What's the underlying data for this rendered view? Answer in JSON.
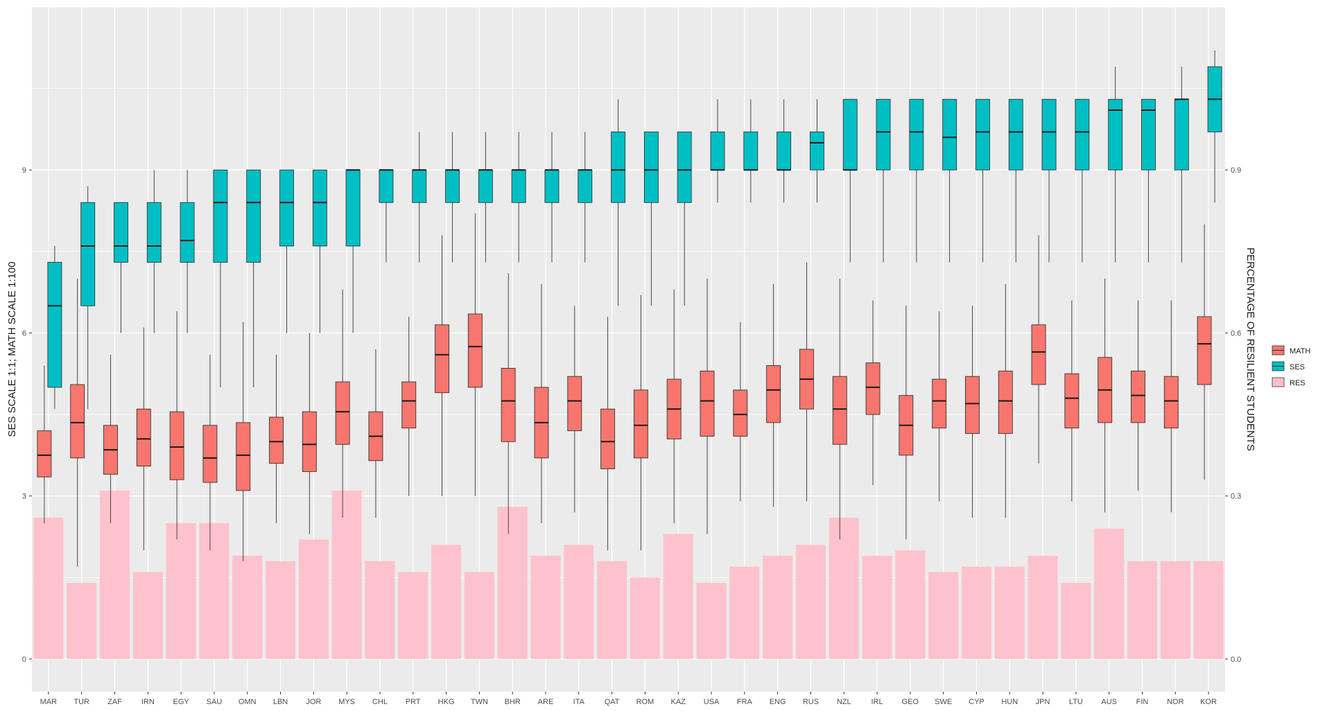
{
  "chart_data": {
    "type": "boxplot",
    "ylabel_left": "SES SCALE 1:1; MATH SCALE 1:100",
    "ylabel_right": "PERCENTAGE OF RESILIENT STUDENTS",
    "ylim_left": [
      -0.6,
      12.0
    ],
    "yticks_left": [
      "0",
      "3",
      "6",
      "9"
    ],
    "yticks_right": [
      "0.0",
      "0.3",
      "0.6",
      "0.9"
    ],
    "categories": [
      "MAR",
      "TUR",
      "ZAF",
      "IRN",
      "EGY",
      "SAU",
      "OMN",
      "LBN",
      "JOR",
      "MYS",
      "CHL",
      "PRT",
      "HKG",
      "TWN",
      "BHR",
      "ARE",
      "ITA",
      "QAT",
      "ROM",
      "KAZ",
      "USA",
      "FRA",
      "ENG",
      "RUS",
      "NZL",
      "IRL",
      "GEO",
      "SWE",
      "CYP",
      "HUN",
      "JPN",
      "LTU",
      "AUS",
      "FIN",
      "NOR",
      "KOR"
    ],
    "legend": [
      {
        "label": "MATH",
        "color": "#F8766D"
      },
      {
        "label": "SES",
        "color": "#00BFC4"
      },
      {
        "label": "RES",
        "color": "#FFC0CB"
      }
    ],
    "series": {
      "RES": {
        "name": "RES",
        "values": [
          0.26,
          0.14,
          0.31,
          0.16,
          0.25,
          0.25,
          0.19,
          0.18,
          0.22,
          0.31,
          0.18,
          0.16,
          0.21,
          0.16,
          0.28,
          0.19,
          0.21,
          0.18,
          0.15,
          0.23,
          0.14,
          0.17,
          0.19,
          0.21,
          0.26,
          0.19,
          0.2,
          0.16,
          0.17,
          0.17,
          0.19,
          0.14,
          0.24,
          0.18,
          0.18,
          0.18
        ]
      },
      "SES": {
        "name": "SES",
        "boxes": [
          [
            4.6,
            5.0,
            6.5,
            7.3,
            7.6
          ],
          [
            4.6,
            6.5,
            7.6,
            8.4,
            8.7
          ],
          [
            6.0,
            7.3,
            7.6,
            8.4,
            8.4
          ],
          [
            6.0,
            7.3,
            7.6,
            8.4,
            9.0
          ],
          [
            6.0,
            7.3,
            7.7,
            8.4,
            9.0
          ],
          [
            5.0,
            7.3,
            8.4,
            9.0,
            9.0
          ],
          [
            5.0,
            7.3,
            8.4,
            9.0,
            9.0
          ],
          [
            6.0,
            7.6,
            8.4,
            9.0,
            9.0
          ],
          [
            6.0,
            7.6,
            8.4,
            9.0,
            9.0
          ],
          [
            6.0,
            7.6,
            9.0,
            9.0,
            9.0
          ],
          [
            7.3,
            8.4,
            9.0,
            9.0,
            9.0
          ],
          [
            7.3,
            8.4,
            9.0,
            9.0,
            9.7
          ],
          [
            7.3,
            8.4,
            9.0,
            9.0,
            9.7
          ],
          [
            7.3,
            8.4,
            9.0,
            9.0,
            9.7
          ],
          [
            7.3,
            8.4,
            9.0,
            9.0,
            9.7
          ],
          [
            7.3,
            8.4,
            9.0,
            9.0,
            9.7
          ],
          [
            7.3,
            8.4,
            9.0,
            9.0,
            9.7
          ],
          [
            6.5,
            8.4,
            9.0,
            9.7,
            10.3
          ],
          [
            6.5,
            8.4,
            9.0,
            9.7,
            9.7
          ],
          [
            6.5,
            8.4,
            9.0,
            9.7,
            9.7
          ],
          [
            8.4,
            9.0,
            9.0,
            9.7,
            10.3
          ],
          [
            8.4,
            9.0,
            9.0,
            9.7,
            10.3
          ],
          [
            8.4,
            9.0,
            9.0,
            9.7,
            10.3
          ],
          [
            8.4,
            9.0,
            9.5,
            9.7,
            10.3
          ],
          [
            7.3,
            9.0,
            9.0,
            10.3,
            10.3
          ],
          [
            7.3,
            9.0,
            9.7,
            10.3,
            10.3
          ],
          [
            7.3,
            9.0,
            9.7,
            10.3,
            10.3
          ],
          [
            7.3,
            9.0,
            9.6,
            10.3,
            10.3
          ],
          [
            7.3,
            9.0,
            9.7,
            10.3,
            10.3
          ],
          [
            7.3,
            9.0,
            9.7,
            10.3,
            10.3
          ],
          [
            7.3,
            9.0,
            9.7,
            10.3,
            10.3
          ],
          [
            7.3,
            9.0,
            9.7,
            10.3,
            10.3
          ],
          [
            7.3,
            9.0,
            10.1,
            10.3,
            10.9
          ],
          [
            7.3,
            9.0,
            10.1,
            10.3,
            10.3
          ],
          [
            7.3,
            9.0,
            10.3,
            10.3,
            10.9
          ],
          [
            8.4,
            9.7,
            10.3,
            10.9,
            11.2
          ]
        ]
      },
      "MATH": {
        "name": "MATH",
        "boxes": [
          [
            2.5,
            3.35,
            3.75,
            4.2,
            5.4
          ],
          [
            1.7,
            3.7,
            4.35,
            5.05,
            7.0
          ],
          [
            2.5,
            3.4,
            3.85,
            4.3,
            5.6
          ],
          [
            2.0,
            3.55,
            4.05,
            4.6,
            6.1
          ],
          [
            2.2,
            3.3,
            3.9,
            4.55,
            6.4
          ],
          [
            2.0,
            3.25,
            3.7,
            4.3,
            5.6
          ],
          [
            1.8,
            3.1,
            3.75,
            4.35,
            6.2
          ],
          [
            2.5,
            3.6,
            4.0,
            4.45,
            5.6
          ],
          [
            2.3,
            3.45,
            3.95,
            4.55,
            6.0
          ],
          [
            2.6,
            3.95,
            4.55,
            5.1,
            6.8
          ],
          [
            2.6,
            3.65,
            4.1,
            4.55,
            5.7
          ],
          [
            3.0,
            4.25,
            4.75,
            5.1,
            6.3
          ],
          [
            3.0,
            4.9,
            5.6,
            6.15,
            7.8
          ],
          [
            3.0,
            5.0,
            5.75,
            6.35,
            8.2
          ],
          [
            2.3,
            4.0,
            4.75,
            5.35,
            7.1
          ],
          [
            2.5,
            3.7,
            4.35,
            5.0,
            6.9
          ],
          [
            2.7,
            4.2,
            4.75,
            5.2,
            6.5
          ],
          [
            2.0,
            3.5,
            4.0,
            4.6,
            6.3
          ],
          [
            2.0,
            3.7,
            4.3,
            4.95,
            6.7
          ],
          [
            2.5,
            4.05,
            4.6,
            5.15,
            6.8
          ],
          [
            2.3,
            4.1,
            4.75,
            5.3,
            7.0
          ],
          [
            2.9,
            4.1,
            4.5,
            4.95,
            6.2
          ],
          [
            2.8,
            4.35,
            4.95,
            5.4,
            6.9
          ],
          [
            2.9,
            4.6,
            5.15,
            5.7,
            7.3
          ],
          [
            2.2,
            3.95,
            4.6,
            5.2,
            7.0
          ],
          [
            3.2,
            4.5,
            5.0,
            5.45,
            6.6
          ],
          [
            2.2,
            3.75,
            4.3,
            4.85,
            6.5
          ],
          [
            2.9,
            4.25,
            4.75,
            5.15,
            6.4
          ],
          [
            2.6,
            4.15,
            4.7,
            5.2,
            6.5
          ],
          [
            2.6,
            4.15,
            4.75,
            5.3,
            6.9
          ],
          [
            3.6,
            5.05,
            5.65,
            6.15,
            7.8
          ],
          [
            2.9,
            4.25,
            4.8,
            5.25,
            6.6
          ],
          [
            2.7,
            4.35,
            4.95,
            5.55,
            7.0
          ],
          [
            3.1,
            4.35,
            4.85,
            5.3,
            6.6
          ],
          [
            2.7,
            4.25,
            4.75,
            5.2,
            6.6
          ],
          [
            3.3,
            5.05,
            5.8,
            6.3,
            8.0
          ]
        ]
      }
    }
  }
}
